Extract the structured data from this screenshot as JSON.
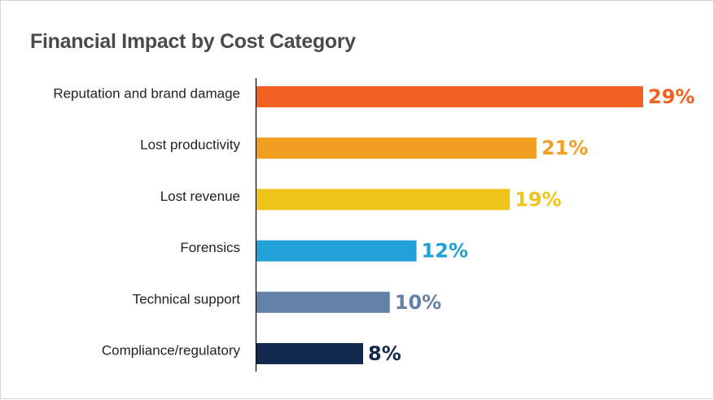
{
  "chart_data": {
    "type": "bar",
    "orientation": "horizontal",
    "title": "Financial Impact by Cost Category",
    "categories": [
      "Reputation and brand damage",
      "Lost productivity",
      "Lost revenue",
      "Forensics",
      "Technical support",
      "Compliance/regulatory"
    ],
    "values": [
      29,
      21,
      19,
      12,
      10,
      8
    ],
    "value_labels": [
      "29%",
      "21%",
      "19%",
      "12%",
      "10%",
      "8%"
    ],
    "colors": [
      "#f26122",
      "#f29e22",
      "#f0c419",
      "#239fdb",
      "#6482a8",
      "#12294f"
    ],
    "xlim": [
      0,
      29
    ],
    "grid": false,
    "legend": "none"
  }
}
